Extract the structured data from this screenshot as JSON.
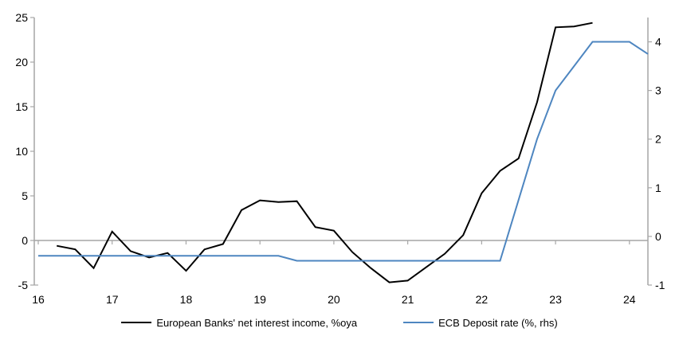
{
  "page": {
    "background": "#ffffff"
  },
  "chart_data": {
    "type": "line",
    "title": "",
    "grid": "zero-line-only",
    "legend_position": "bottom-center",
    "x_axis": {
      "tick_labels": [
        16,
        17,
        18,
        19,
        20,
        21,
        22,
        23,
        24
      ],
      "min": 16,
      "max": 24.3
    },
    "left_axis": {
      "tick_labels": [
        25,
        20,
        15,
        10,
        5,
        0,
        -5
      ],
      "min": -5,
      "max": 25
    },
    "right_axis": {
      "tick_labels": [
        4,
        3,
        2,
        1,
        0,
        -1
      ],
      "min": -1,
      "max": 4.5
    },
    "colors": {
      "axis": "#a6a6a6",
      "zero_line": "#a6a6a6",
      "nii_line": "#000000",
      "ecb_line": "#4e86c0",
      "text": "#000000"
    },
    "series": [
      {
        "name": "European Banks' net interest income, %oya",
        "axis": "left",
        "color_key": "nii_line",
        "points": [
          [
            16.25,
            -0.6
          ],
          [
            16.5,
            -1.0
          ],
          [
            16.75,
            -3.1
          ],
          [
            17.0,
            1.0
          ],
          [
            17.25,
            -1.2
          ],
          [
            17.5,
            -1.9
          ],
          [
            17.75,
            -1.4
          ],
          [
            18.0,
            -3.4
          ],
          [
            18.25,
            -1.0
          ],
          [
            18.5,
            -0.4
          ],
          [
            18.75,
            3.4
          ],
          [
            19.0,
            4.5
          ],
          [
            19.25,
            4.3
          ],
          [
            19.5,
            4.4
          ],
          [
            19.75,
            1.5
          ],
          [
            20.0,
            1.1
          ],
          [
            20.25,
            -1.3
          ],
          [
            20.5,
            -3.1
          ],
          [
            20.75,
            -4.7
          ],
          [
            21.0,
            -4.5
          ],
          [
            21.25,
            -3.0
          ],
          [
            21.5,
            -1.5
          ],
          [
            21.75,
            0.6
          ],
          [
            22.0,
            5.3
          ],
          [
            22.25,
            7.8
          ],
          [
            22.5,
            9.2
          ],
          [
            22.75,
            15.5
          ],
          [
            23.0,
            23.9
          ],
          [
            23.25,
            24.0
          ],
          [
            23.5,
            24.4
          ]
        ]
      },
      {
        "name": "ECB Deposit rate (%, rhs)",
        "axis": "right",
        "color_key": "ecb_line",
        "points": [
          [
            16.0,
            -0.4
          ],
          [
            16.25,
            -0.4
          ],
          [
            16.5,
            -0.4
          ],
          [
            16.75,
            -0.4
          ],
          [
            17.0,
            -0.4
          ],
          [
            17.25,
            -0.4
          ],
          [
            17.5,
            -0.4
          ],
          [
            17.75,
            -0.4
          ],
          [
            18.0,
            -0.4
          ],
          [
            18.25,
            -0.4
          ],
          [
            18.5,
            -0.4
          ],
          [
            18.75,
            -0.4
          ],
          [
            19.0,
            -0.4
          ],
          [
            19.25,
            -0.4
          ],
          [
            19.5,
            -0.5
          ],
          [
            19.75,
            -0.5
          ],
          [
            20.0,
            -0.5
          ],
          [
            20.25,
            -0.5
          ],
          [
            20.5,
            -0.5
          ],
          [
            20.75,
            -0.5
          ],
          [
            21.0,
            -0.5
          ],
          [
            21.25,
            -0.5
          ],
          [
            21.5,
            -0.5
          ],
          [
            21.75,
            -0.5
          ],
          [
            22.0,
            -0.5
          ],
          [
            22.25,
            -0.5
          ],
          [
            22.5,
            0.75
          ],
          [
            22.75,
            2.0
          ],
          [
            23.0,
            3.0
          ],
          [
            23.25,
            3.5
          ],
          [
            23.5,
            4.0
          ],
          [
            23.75,
            4.0
          ],
          [
            24.0,
            4.0
          ],
          [
            24.25,
            3.75
          ]
        ]
      }
    ]
  }
}
